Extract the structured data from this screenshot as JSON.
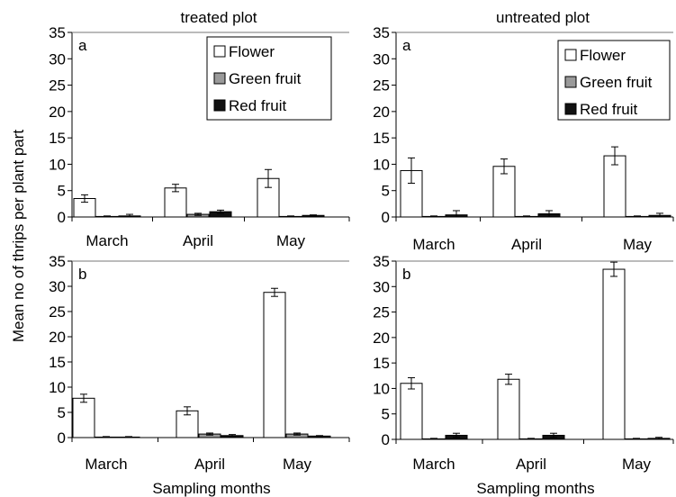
{
  "figure": {
    "ylabel": "Mean no of thrips per plant part",
    "col_titles": [
      "treated plot",
      "untreated plot"
    ],
    "xlabel": "Sampling months"
  },
  "legend": {
    "entries": [
      {
        "name": "Flower",
        "color": "#ffffff"
      },
      {
        "name": "Green fruit",
        "color": "#9a9a9a"
      },
      {
        "name": "Red fruit",
        "color": "#111111"
      }
    ]
  },
  "chart_data": [
    {
      "type": "bar",
      "panel_label": "a",
      "title": "treated plot",
      "categories": [
        "March",
        "April",
        "May"
      ],
      "ylim": [
        0,
        35
      ],
      "yticks": [
        0,
        5,
        10,
        15,
        20,
        25,
        30,
        35
      ],
      "legend": "top-right",
      "xlabel": "",
      "series": [
        {
          "name": "Flower",
          "color": "#ffffff",
          "values": [
            3.5,
            5.5,
            7.3
          ],
          "errors": [
            0.7,
            0.7,
            1.7
          ]
        },
        {
          "name": "Green fruit",
          "color": "#9a9a9a",
          "values": [
            0.1,
            0.5,
            0.1
          ],
          "errors": [
            0.1,
            0.2,
            0.1
          ]
        },
        {
          "name": "Red fruit",
          "color": "#111111",
          "values": [
            0.2,
            1.0,
            0.3
          ],
          "errors": [
            0.3,
            0.3,
            0.1
          ]
        }
      ]
    },
    {
      "type": "bar",
      "panel_label": "a",
      "title": "untreated plot",
      "categories": [
        "March",
        "April",
        "May"
      ],
      "ylim": [
        0,
        35
      ],
      "yticks": [
        0,
        5,
        10,
        15,
        20,
        25,
        30,
        35
      ],
      "legend": "top-right",
      "xlabel": "",
      "series": [
        {
          "name": "Flower",
          "color": "#ffffff",
          "values": [
            8.8,
            9.6,
            11.6
          ],
          "errors": [
            2.4,
            1.4,
            1.7
          ]
        },
        {
          "name": "Green fruit",
          "color": "#9a9a9a",
          "values": [
            0.1,
            0.1,
            0.1
          ],
          "errors": [
            0.1,
            0.1,
            0.1
          ]
        },
        {
          "name": "Red fruit",
          "color": "#111111",
          "values": [
            0.4,
            0.6,
            0.3
          ],
          "errors": [
            0.8,
            0.6,
            0.4
          ]
        }
      ]
    },
    {
      "type": "bar",
      "panel_label": "b",
      "title": "",
      "categories": [
        "March",
        "April",
        "May"
      ],
      "ylim": [
        0,
        35
      ],
      "yticks": [
        0,
        5,
        10,
        15,
        20,
        25,
        30,
        35
      ],
      "xlabel": "Sampling months",
      "series": [
        {
          "name": "Flower",
          "color": "#ffffff",
          "values": [
            7.8,
            5.3,
            28.8
          ],
          "errors": [
            0.8,
            0.8,
            0.8
          ]
        },
        {
          "name": "Green fruit",
          "color": "#9a9a9a",
          "values": [
            0.1,
            0.7,
            0.7
          ],
          "errors": [
            0.1,
            0.2,
            0.2
          ]
        },
        {
          "name": "Red fruit",
          "color": "#111111",
          "values": [
            0.1,
            0.4,
            0.3
          ],
          "errors": [
            0.1,
            0.2,
            0.1
          ]
        }
      ]
    },
    {
      "type": "bar",
      "panel_label": "b",
      "title": "",
      "categories": [
        "March",
        "April",
        "May"
      ],
      "ylim": [
        0,
        35
      ],
      "yticks": [
        0,
        5,
        10,
        15,
        20,
        25,
        30,
        35
      ],
      "xlabel": "Sampling months",
      "series": [
        {
          "name": "Flower",
          "color": "#ffffff",
          "values": [
            11.0,
            11.8,
            33.4
          ],
          "errors": [
            1.1,
            1.0,
            1.4
          ]
        },
        {
          "name": "Green fruit",
          "color": "#9a9a9a",
          "values": [
            0.1,
            0.1,
            0.1
          ],
          "errors": [
            0.1,
            0.1,
            0.1
          ]
        },
        {
          "name": "Red fruit",
          "color": "#111111",
          "values": [
            0.8,
            0.8,
            0.2
          ],
          "errors": [
            0.4,
            0.4,
            0.2
          ]
        }
      ]
    }
  ]
}
